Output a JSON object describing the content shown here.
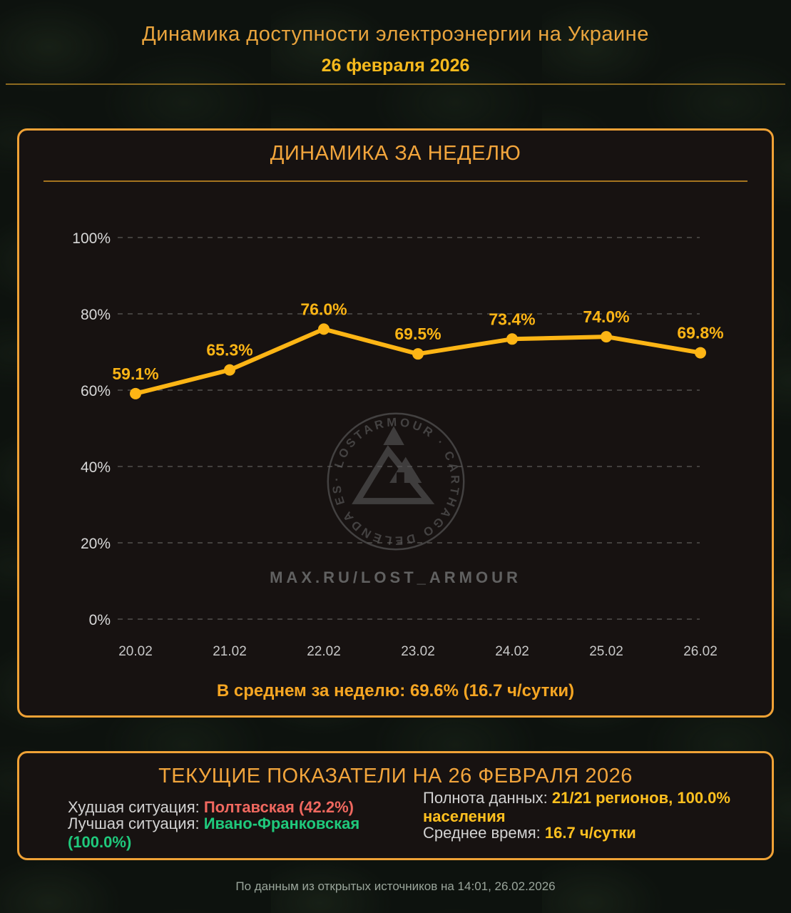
{
  "colors": {
    "accent_orange": "#f2a53c",
    "line_gold": "#fdb515",
    "date_gold": "#f7ba1d",
    "worst_red": "#f0685f",
    "best_green": "#1fc97c",
    "value_yellow": "#ffc01f"
  },
  "header": {
    "title": "Динамика доступности электроэнергии на Украине",
    "date": "26 февраля 2026"
  },
  "week_panel": {
    "title": "ДИНАМИКА ЗА НЕДЕЛЮ",
    "average_line": "В среднем за неделю: 69.6% (16.7 ч/сутки)"
  },
  "chart_data": {
    "type": "line",
    "title": "ДИНАМИКА ЗА НЕДЕЛЮ",
    "x": [
      "20.02",
      "21.02",
      "22.02",
      "23.02",
      "24.02",
      "25.02",
      "26.02"
    ],
    "values": [
      59.1,
      65.3,
      76.0,
      69.5,
      73.4,
      74.0,
      69.8
    ],
    "point_labels": [
      "59.1%",
      "65.3%",
      "76.0%",
      "69.5%",
      "73.4%",
      "74.0%",
      "69.8%"
    ],
    "y_ticks": [
      "100%",
      "80%",
      "60%",
      "40%",
      "20%",
      "0%"
    ],
    "ylim": [
      0,
      100
    ],
    "grid": "horizontal-dashed",
    "legend": "none",
    "line_color": "#fdb515"
  },
  "watermark": {
    "ring_text": "· LOSTARMOUR · CARTHAGO DELENDA EST",
    "caption": "MAX.RU/LOST_ARMOUR"
  },
  "current_panel": {
    "title": "ТЕКУЩИЕ ПОКАЗАТЕЛИ НА 26 ФЕВРАЛЯ 2026",
    "rows": {
      "worst_label": "Худшая ситуация:",
      "worst_value": "Полтавская (42.2%)",
      "best_label": "Лучшая ситуация:",
      "best_value": "Ивано-Франковская (100.0%)",
      "completeness_label": "Полнота данных:",
      "completeness_value": "21/21 регионов, 100.0% населения",
      "avg_time_label": "Среднее время:",
      "avg_time_value": "16.7 ч/сутки"
    }
  },
  "footer": {
    "source": "По данным из открытых источников на 14:01, 26.02.2026"
  }
}
